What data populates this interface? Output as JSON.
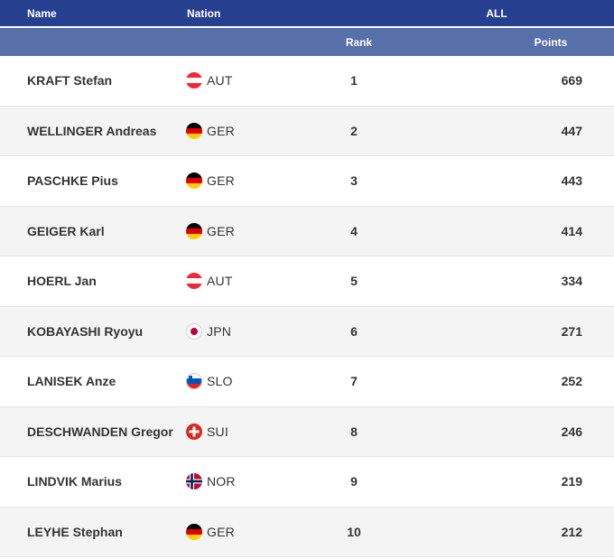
{
  "header": {
    "name_label": "Name",
    "nation_label": "Nation",
    "all_label": "ALL",
    "rank_label": "Rank",
    "points_label": "Points"
  },
  "rows": [
    {
      "name": "KRAFT Stefan",
      "nation": "AUT",
      "rank": "1",
      "points": "669",
      "flag": "aut-flag-icon"
    },
    {
      "name": "WELLINGER Andreas",
      "nation": "GER",
      "rank": "2",
      "points": "447",
      "flag": "ger-flag-icon"
    },
    {
      "name": "PASCHKE Pius",
      "nation": "GER",
      "rank": "3",
      "points": "443",
      "flag": "ger-flag-icon"
    },
    {
      "name": "GEIGER Karl",
      "nation": "GER",
      "rank": "4",
      "points": "414",
      "flag": "ger-flag-icon"
    },
    {
      "name": "HOERL Jan",
      "nation": "AUT",
      "rank": "5",
      "points": "334",
      "flag": "aut-flag-icon"
    },
    {
      "name": "KOBAYASHI Ryoyu",
      "nation": "JPN",
      "rank": "6",
      "points": "271",
      "flag": "jpn-flag-icon"
    },
    {
      "name": "LANISEK Anze",
      "nation": "SLO",
      "rank": "7",
      "points": "252",
      "flag": "slo-flag-icon"
    },
    {
      "name": "DESCHWANDEN Gregor",
      "nation": "SUI",
      "rank": "8",
      "points": "246",
      "flag": "sui-flag-icon"
    },
    {
      "name": "LINDVIK Marius",
      "nation": "NOR",
      "rank": "9",
      "points": "219",
      "flag": "nor-flag-icon"
    },
    {
      "name": "LEYHE Stephan",
      "nation": "GER",
      "rank": "10",
      "points": "212",
      "flag": "ger-flag-icon"
    }
  ],
  "colors": {
    "header_primary": "#263f8f",
    "header_secondary": "#5870a9"
  }
}
